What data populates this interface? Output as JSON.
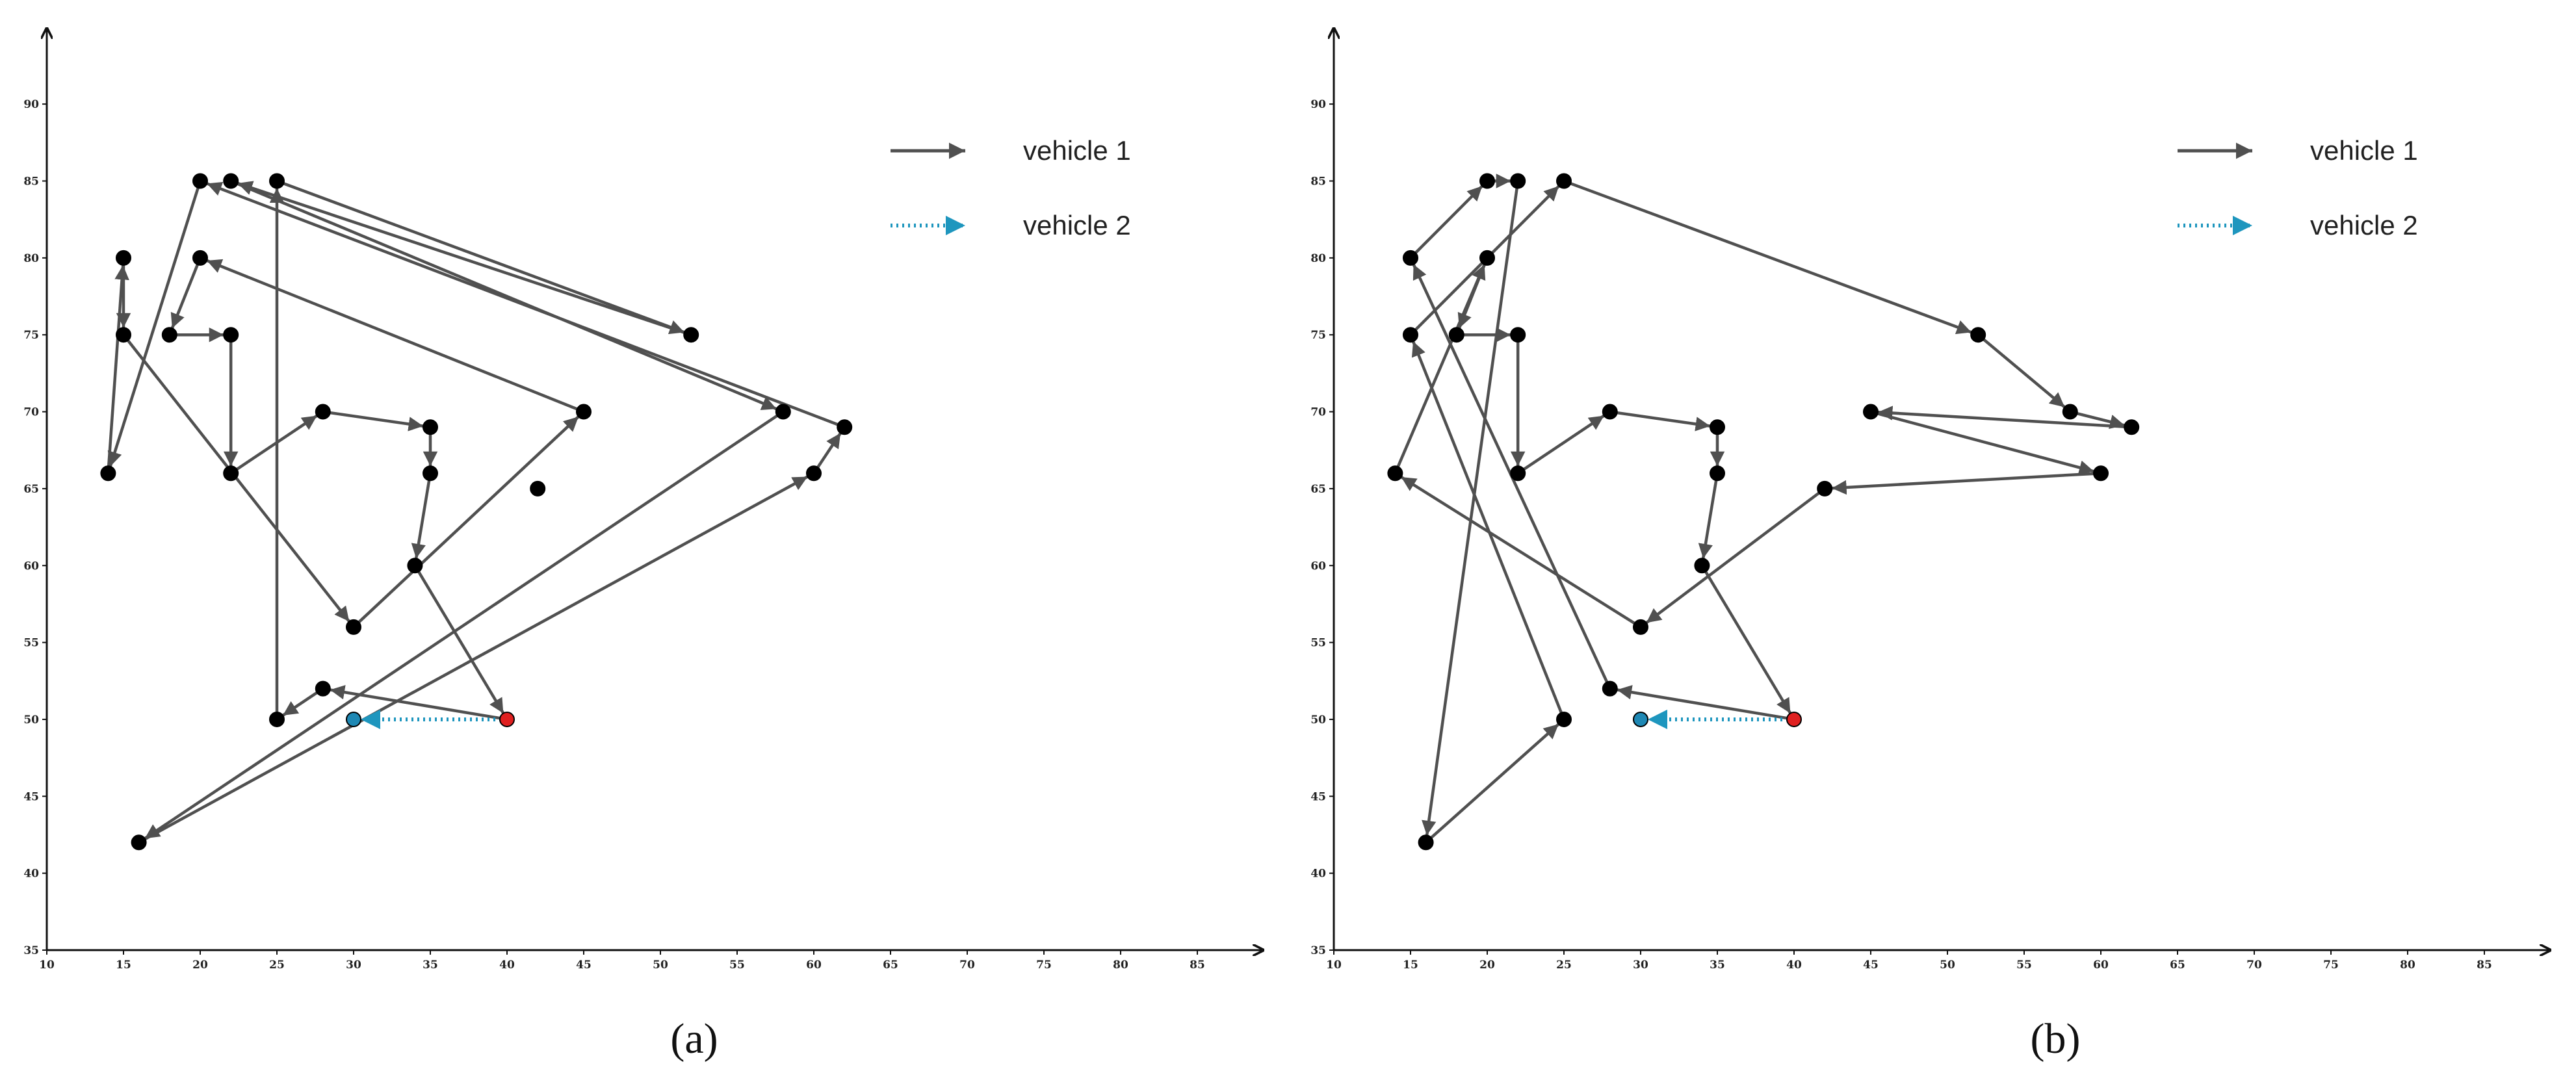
{
  "chart_data": [
    {
      "type": "line",
      "caption": "(a)",
      "xlim": [
        10,
        90
      ],
      "ylim": [
        35,
        95
      ],
      "x_ticks": [
        10,
        15,
        20,
        25,
        30,
        35,
        40,
        45,
        50,
        55,
        60,
        65,
        70,
        75,
        80,
        85
      ],
      "y_ticks": [
        35,
        40,
        45,
        50,
        55,
        60,
        65,
        70,
        75,
        80,
        85,
        90
      ],
      "grid": false,
      "legend": {
        "placement": "top-right",
        "entries": [
          "vehicle 1",
          "vehicle 2"
        ]
      },
      "depot": {
        "x": 40,
        "y": 50,
        "color": "#e02020"
      },
      "vehicle2_end": {
        "x": 30,
        "y": 50,
        "color": "#1e88b4"
      },
      "series": [
        {
          "name": "vehicle 1",
          "color": "#505050",
          "style": "solid",
          "points": [
            [
              40,
              50
            ],
            [
              28,
              52
            ],
            [
              25,
              50
            ],
            [
              25,
              85
            ],
            [
              52,
              75
            ],
            [
              22,
              85
            ],
            [
              58,
              70
            ],
            [
              16,
              42
            ],
            [
              60,
              66
            ],
            [
              62,
              69
            ],
            [
              20,
              85
            ],
            [
              14,
              66
            ],
            [
              15,
              80
            ],
            [
              15,
              75
            ],
            [
              30,
              56
            ],
            [
              45,
              70
            ],
            [
              20,
              80
            ],
            [
              18,
              75
            ],
            [
              22,
              75
            ],
            [
              22,
              66
            ],
            [
              28,
              70
            ],
            [
              35,
              69
            ],
            [
              35,
              66
            ],
            [
              34,
              60
            ],
            [
              40,
              50
            ]
          ]
        },
        {
          "name": "vehicle 2",
          "color": "#1e96be",
          "style": "dotted",
          "points": [
            [
              40,
              50
            ],
            [
              30,
              50
            ]
          ]
        }
      ],
      "extra_nodes": [
        [
          42,
          65
        ]
      ]
    },
    {
      "type": "line",
      "caption": "(b)",
      "xlim": [
        10,
        90
      ],
      "ylim": [
        35,
        95
      ],
      "x_ticks": [
        10,
        15,
        20,
        25,
        30,
        35,
        40,
        45,
        50,
        55,
        60,
        65,
        70,
        75,
        80,
        85
      ],
      "y_ticks": [
        35,
        40,
        45,
        50,
        55,
        60,
        65,
        70,
        75,
        80,
        85,
        90
      ],
      "grid": false,
      "legend": {
        "placement": "top-right",
        "entries": [
          "vehicle 1",
          "vehicle 2"
        ]
      },
      "depot": {
        "x": 40,
        "y": 50,
        "color": "#e02020"
      },
      "vehicle2_end": {
        "x": 30,
        "y": 50,
        "color": "#1e88b4"
      },
      "series": [
        {
          "name": "vehicle 1",
          "color": "#505050",
          "style": "solid",
          "points": [
            [
              40,
              50
            ],
            [
              28,
              52
            ],
            [
              15,
              80
            ],
            [
              20,
              85
            ],
            [
              22,
              85
            ],
            [
              16,
              42
            ],
            [
              25,
              50
            ],
            [
              15,
              75
            ],
            [
              25,
              85
            ],
            [
              52,
              75
            ],
            [
              58,
              70
            ],
            [
              62,
              69
            ],
            [
              45,
              70
            ],
            [
              60,
              66
            ],
            [
              42,
              65
            ],
            [
              30,
              56
            ],
            [
              14,
              66
            ],
            [
              20,
              80
            ],
            [
              18,
              75
            ],
            [
              22,
              75
            ],
            [
              22,
              66
            ],
            [
              28,
              70
            ],
            [
              35,
              69
            ],
            [
              35,
              66
            ],
            [
              34,
              60
            ],
            [
              40,
              50
            ]
          ]
        },
        {
          "name": "vehicle 2",
          "color": "#1e96be",
          "style": "dotted",
          "points": [
            [
              40,
              50
            ],
            [
              30,
              50
            ]
          ]
        }
      ],
      "extra_nodes": []
    }
  ]
}
